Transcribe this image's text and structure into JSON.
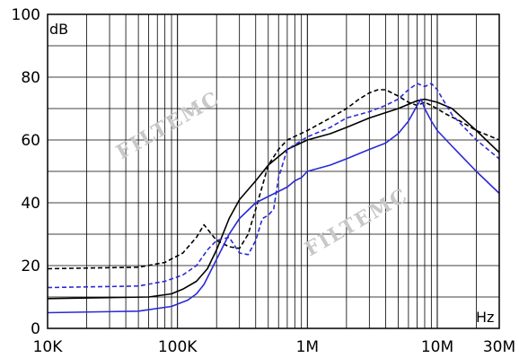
{
  "chart_data": {
    "type": "line",
    "x_scale": "log",
    "x_unit": "Hz",
    "y_unit": "dB",
    "xlim": [
      10000,
      30000000
    ],
    "ylim": [
      0,
      100
    ],
    "grid": true,
    "x_ticks": [
      {
        "value": 10000,
        "label": "10K"
      },
      {
        "value": 100000,
        "label": "100K"
      },
      {
        "value": 1000000,
        "label": "1M"
      },
      {
        "value": 10000000,
        "label": "10M"
      },
      {
        "value": 30000000,
        "label": "30M"
      }
    ],
    "y_ticks": [
      {
        "value": 0,
        "label": "0"
      },
      {
        "value": 20,
        "label": "20"
      },
      {
        "value": 40,
        "label": "40"
      },
      {
        "value": 60,
        "label": "60"
      },
      {
        "value": 80,
        "label": "80"
      },
      {
        "value": 100,
        "label": "100"
      }
    ],
    "watermark": "FILTEMC",
    "series": [
      {
        "color": "#000000",
        "style": "dashed",
        "points": [
          [
            10000,
            19
          ],
          [
            50000,
            19.5
          ],
          [
            80000,
            21
          ],
          [
            110000,
            24
          ],
          [
            140000,
            29
          ],
          [
            160000,
            33
          ],
          [
            200000,
            28
          ],
          [
            250000,
            26
          ],
          [
            300000,
            25.5
          ],
          [
            350000,
            30
          ],
          [
            400000,
            38
          ],
          [
            500000,
            52
          ],
          [
            600000,
            57
          ],
          [
            700000,
            60
          ],
          [
            1000000,
            63
          ],
          [
            1500000,
            67
          ],
          [
            2000000,
            70
          ],
          [
            2500000,
            73
          ],
          [
            3000000,
            75
          ],
          [
            3500000,
            76
          ],
          [
            4000000,
            76
          ],
          [
            5000000,
            74
          ],
          [
            6000000,
            72
          ],
          [
            7000000,
            71
          ],
          [
            8000000,
            72
          ],
          [
            9000000,
            71
          ],
          [
            12000000,
            68
          ],
          [
            15000000,
            66
          ],
          [
            20000000,
            63
          ],
          [
            30000000,
            60
          ]
        ]
      },
      {
        "color": "#000000",
        "style": "solid",
        "points": [
          [
            10000,
            9.5
          ],
          [
            60000,
            10
          ],
          [
            90000,
            11
          ],
          [
            110000,
            12.5
          ],
          [
            140000,
            15
          ],
          [
            170000,
            19
          ],
          [
            200000,
            25
          ],
          [
            250000,
            35
          ],
          [
            300000,
            41
          ],
          [
            400000,
            47
          ],
          [
            500000,
            52
          ],
          [
            700000,
            57
          ],
          [
            1000000,
            60
          ],
          [
            1500000,
            62
          ],
          [
            2000000,
            64
          ],
          [
            3000000,
            67
          ],
          [
            5000000,
            70
          ],
          [
            7000000,
            72.5
          ],
          [
            8000000,
            73
          ],
          [
            10000000,
            72
          ],
          [
            13000000,
            70
          ],
          [
            20000000,
            63
          ],
          [
            30000000,
            56
          ]
        ]
      },
      {
        "color": "#2a2ad6",
        "style": "dashed",
        "points": [
          [
            10000,
            13
          ],
          [
            50000,
            13.5
          ],
          [
            80000,
            15
          ],
          [
            110000,
            17
          ],
          [
            140000,
            20
          ],
          [
            170000,
            25
          ],
          [
            200000,
            28
          ],
          [
            250000,
            29
          ],
          [
            300000,
            24
          ],
          [
            350000,
            23.5
          ],
          [
            400000,
            28
          ],
          [
            450000,
            35
          ],
          [
            500000,
            36
          ],
          [
            550000,
            38
          ],
          [
            600000,
            48
          ],
          [
            700000,
            57
          ],
          [
            1000000,
            61
          ],
          [
            1500000,
            64
          ],
          [
            2000000,
            67
          ],
          [
            3000000,
            69
          ],
          [
            4000000,
            71
          ],
          [
            5000000,
            73
          ],
          [
            6000000,
            76
          ],
          [
            7000000,
            78
          ],
          [
            8000000,
            77
          ],
          [
            9000000,
            78
          ],
          [
            10000000,
            76
          ],
          [
            11000000,
            73
          ],
          [
            13000000,
            68
          ],
          [
            20000000,
            60
          ],
          [
            30000000,
            54
          ]
        ]
      },
      {
        "color": "#2a2ad6",
        "style": "solid",
        "points": [
          [
            10000,
            5
          ],
          [
            50000,
            5.5
          ],
          [
            90000,
            7
          ],
          [
            120000,
            9
          ],
          [
            140000,
            11
          ],
          [
            160000,
            14
          ],
          [
            200000,
            22
          ],
          [
            250000,
            30
          ],
          [
            300000,
            35
          ],
          [
            400000,
            40
          ],
          [
            500000,
            42
          ],
          [
            700000,
            45
          ],
          [
            800000,
            47
          ],
          [
            900000,
            48
          ],
          [
            1000000,
            50
          ],
          [
            1500000,
            52
          ],
          [
            2000000,
            54
          ],
          [
            3000000,
            57
          ],
          [
            4000000,
            59
          ],
          [
            5000000,
            62
          ],
          [
            6000000,
            66
          ],
          [
            7000000,
            71
          ],
          [
            7500000,
            73
          ],
          [
            8000000,
            70
          ],
          [
            9000000,
            66
          ],
          [
            10000000,
            63
          ],
          [
            13000000,
            58
          ],
          [
            20000000,
            50
          ],
          [
            30000000,
            43
          ]
        ]
      }
    ]
  }
}
